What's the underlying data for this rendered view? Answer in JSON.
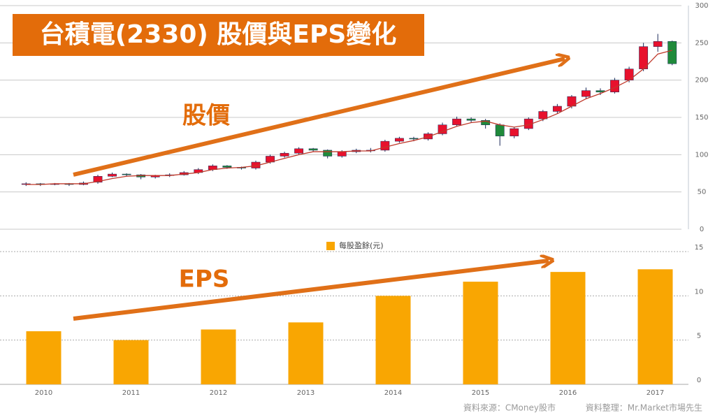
{
  "chart_data": [
    {
      "type": "candlestick",
      "title": "台積電(2330) 股價與EPS變化",
      "annotations": [
        "股價"
      ],
      "open": [
        60,
        61,
        60,
        61,
        60,
        63,
        71,
        74,
        73,
        70,
        72,
        73,
        76,
        80,
        85,
        83,
        82,
        90,
        98,
        102,
        108,
        106,
        98,
        104,
        106,
        106,
        118,
        122,
        121,
        128,
        140,
        148,
        146,
        140,
        125,
        135,
        148,
        158,
        165,
        178,
        186,
        184,
        200,
        215,
        245,
        252
      ],
      "high": [
        63,
        62,
        62,
        62,
        64,
        73,
        76,
        75,
        74,
        73,
        75,
        78,
        82,
        87,
        86,
        84,
        92,
        100,
        104,
        110,
        109,
        107,
        106,
        108,
        109,
        120,
        124,
        124,
        130,
        143,
        151,
        150,
        148,
        142,
        137,
        150,
        160,
        168,
        180,
        190,
        189,
        203,
        218,
        250,
        262,
        253
      ],
      "low": [
        58,
        58,
        59,
        58,
        59,
        61,
        70,
        71,
        67,
        68,
        70,
        72,
        74,
        78,
        81,
        80,
        80,
        88,
        96,
        100,
        104,
        95,
        96,
        102,
        103,
        104,
        116,
        118,
        119,
        126,
        138,
        143,
        135,
        112,
        122,
        133,
        145,
        155,
        162,
        175,
        180,
        182,
        197,
        212,
        238,
        220
      ],
      "close": [
        61,
        60,
        61,
        60,
        62,
        71,
        74,
        73,
        70,
        72,
        73,
        76,
        80,
        85,
        83,
        82,
        90,
        98,
        102,
        108,
        106,
        98,
        104,
        106,
        106,
        118,
        122,
        121,
        128,
        140,
        148,
        146,
        140,
        125,
        135,
        148,
        158,
        165,
        178,
        186,
        184,
        200,
        215,
        245,
        252,
        222
      ],
      "ma": [
        60,
        60,
        61,
        61,
        61,
        64,
        68,
        71,
        72,
        72,
        72,
        74,
        76,
        80,
        82,
        83,
        85,
        90,
        95,
        100,
        104,
        104,
        104,
        105,
        105,
        110,
        115,
        119,
        124,
        131,
        138,
        143,
        145,
        140,
        137,
        140,
        147,
        155,
        165,
        175,
        182,
        190,
        200,
        215,
        235,
        240
      ],
      "up_color": "#e8112d",
      "down_color": "#1f8a3a",
      "ma_color": "#c0392b",
      "ylim": [
        0,
        300
      ],
      "yticks": [
        0,
        50,
        100,
        150,
        200,
        250,
        300
      ],
      "grid": true
    },
    {
      "type": "bar",
      "annotations": [
        "EPS"
      ],
      "categories": [
        "2010",
        "2011",
        "2012",
        "2013",
        "2014",
        "2015",
        "2016",
        "2017"
      ],
      "series": [
        {
          "name": "每股盈餘(元)",
          "color": "#f9a602",
          "values": [
            6.0,
            5.0,
            6.2,
            7.0,
            10.0,
            11.6,
            12.7,
            13.0
          ]
        }
      ],
      "ylim": [
        0,
        15
      ],
      "yticks": [
        0,
        5,
        10,
        15
      ],
      "grid": true,
      "source": [
        "資料來源：CMoney股市",
        "資料整理：Mr.Market市場先生"
      ]
    }
  ]
}
